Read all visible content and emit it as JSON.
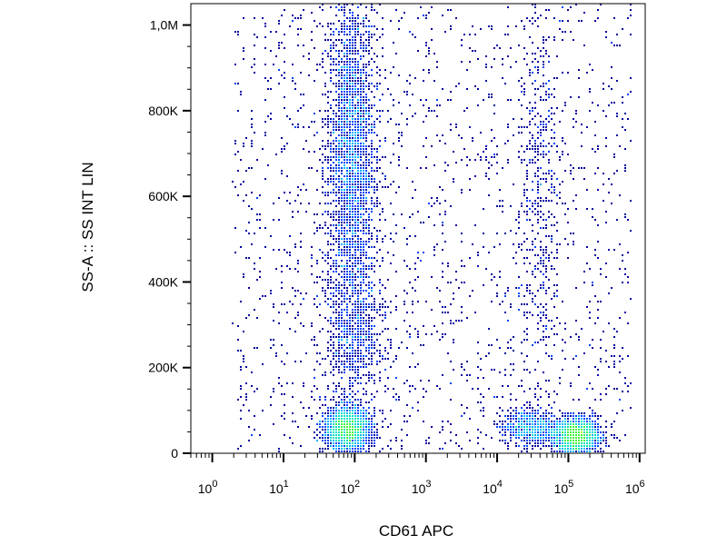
{
  "chart_data": {
    "type": "heatmap",
    "subtype": "flow-cytometry-density-scatter",
    "title": "",
    "xlabel": "CD61 APC",
    "ylabel": "SS-A :: SS INT LIN",
    "x_scale": "log",
    "y_scale": "linear",
    "xlim": [
      0.5,
      1200000
    ],
    "ylim": [
      0,
      1050000
    ],
    "x_ticks": [
      {
        "value": 1,
        "base": "10",
        "exp": "0"
      },
      {
        "value": 10,
        "base": "10",
        "exp": "1"
      },
      {
        "value": 100,
        "base": "10",
        "exp": "2"
      },
      {
        "value": 1000,
        "base": "10",
        "exp": "3"
      },
      {
        "value": 10000,
        "base": "10",
        "exp": "4"
      },
      {
        "value": 100000,
        "base": "10",
        "exp": "5"
      },
      {
        "value": 1000000,
        "base": "10",
        "exp": "6"
      }
    ],
    "y_ticks": [
      {
        "value": 0,
        "label": "0"
      },
      {
        "value": 200000,
        "label": "200K"
      },
      {
        "value": 400000,
        "label": "400K"
      },
      {
        "value": 600000,
        "label": "600K"
      },
      {
        "value": 800000,
        "label": "800K"
      },
      {
        "value": 1000000,
        "label": "1,0M"
      }
    ],
    "grid": false,
    "legend": "none",
    "colormap": [
      "#0000a0",
      "#0044ff",
      "#00b4ff",
      "#00e0c0",
      "#40f040",
      "#c8f000",
      "#ffd000",
      "#ff7000",
      "#e00000"
    ],
    "populations": [
      {
        "x_center": 90,
        "y_center": 700000,
        "x_spread_decades": 0.17,
        "y_spread": 190000,
        "density": "high"
      },
      {
        "x_center": 80,
        "y_center": 55000,
        "x_spread_decades": 0.16,
        "y_spread": 25000,
        "density": "very high"
      },
      {
        "x_center": 130000,
        "y_center": 40000,
        "x_spread_decades": 0.15,
        "y_spread": 20000,
        "density": "very high"
      },
      {
        "x_center": 30000,
        "y_center": 60000,
        "x_spread_decades": 0.2,
        "y_spread": 20000,
        "density": "medium"
      },
      {
        "x_center": 40000,
        "y_center": 600000,
        "x_spread_decades": 0.15,
        "y_spread": 250000,
        "density": "low"
      },
      {
        "x_center": 100,
        "y_center": 280000,
        "x_spread_decades": 0.2,
        "y_spread": 90000,
        "density": "medium"
      }
    ]
  }
}
